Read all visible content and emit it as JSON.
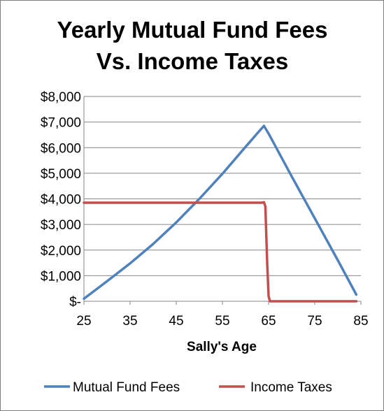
{
  "chart_data": {
    "type": "line",
    "title": [
      "Yearly Mutual Fund Fees",
      "Vs. Income Taxes"
    ],
    "xlabel": "Sally's Age",
    "ylabel": "",
    "xlim": [
      25,
      85
    ],
    "ylim": [
      0,
      8000
    ],
    "x_ticks": [
      25,
      35,
      45,
      55,
      65,
      75,
      85
    ],
    "x_tick_labels": [
      "25",
      "35",
      "45",
      "55",
      "65",
      "75",
      "85"
    ],
    "y_ticks": [
      0,
      1000,
      2000,
      3000,
      4000,
      5000,
      6000,
      7000,
      8000
    ],
    "y_tick_labels": [
      "$-",
      "$1,000",
      "$2,000",
      "$3,000",
      "$4,000",
      "$5,000",
      "$6,000",
      "$7,000",
      "$8,000"
    ],
    "grid": true,
    "legend_position": "bottom",
    "series": [
      {
        "name": "Mutual Fund Fees",
        "color": "#4f81bd",
        "x": [
          25,
          30,
          35,
          40,
          45,
          50,
          55,
          60,
          63,
          64,
          65,
          70,
          75,
          80,
          84
        ],
        "y": [
          100,
          780,
          1480,
          2240,
          3080,
          4000,
          4980,
          6030,
          6650,
          6850,
          6550,
          4880,
          3240,
          1600,
          260
        ]
      },
      {
        "name": "Income Taxes",
        "color": "#c0504d",
        "x": [
          25,
          30,
          40,
          50,
          60,
          63.5,
          64,
          64.3,
          64.7,
          65,
          65.3,
          70,
          80,
          84
        ],
        "y": [
          3850,
          3850,
          3850,
          3850,
          3850,
          3850,
          3870,
          3700,
          1500,
          200,
          0,
          0,
          0,
          0
        ]
      }
    ]
  }
}
